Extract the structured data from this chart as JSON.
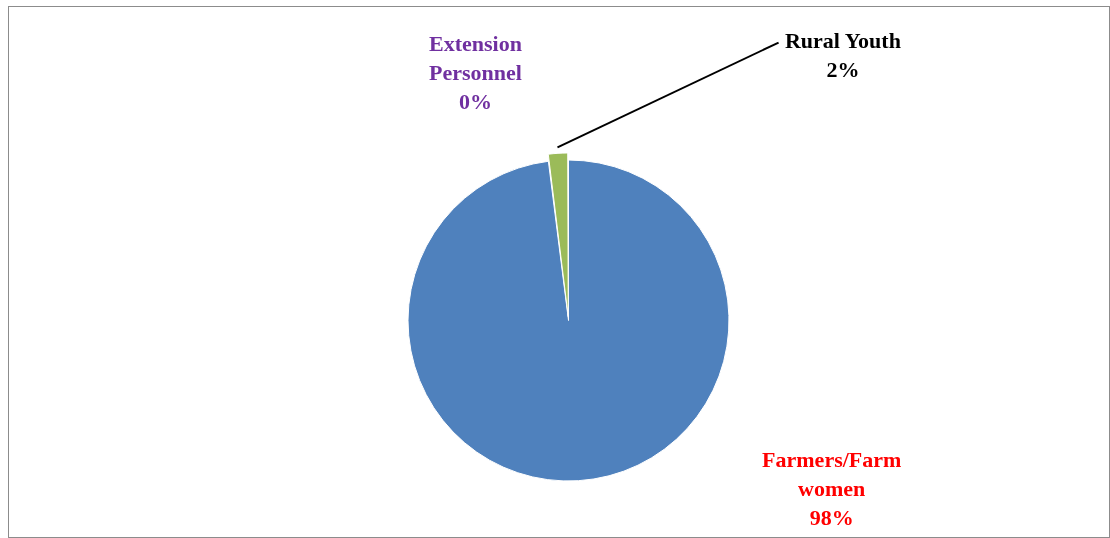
{
  "chart_data": {
    "type": "pie",
    "categories": [
      "Farmers/Farm women",
      "Extension Personnel",
      "Rural Youth"
    ],
    "values": [
      98,
      0,
      2
    ],
    "colors": [
      "#4f81bd",
      "#8064a2",
      "#9bbb59"
    ],
    "value_labels": [
      "98%",
      "0%",
      "2%"
    ],
    "legend": false
  }
}
